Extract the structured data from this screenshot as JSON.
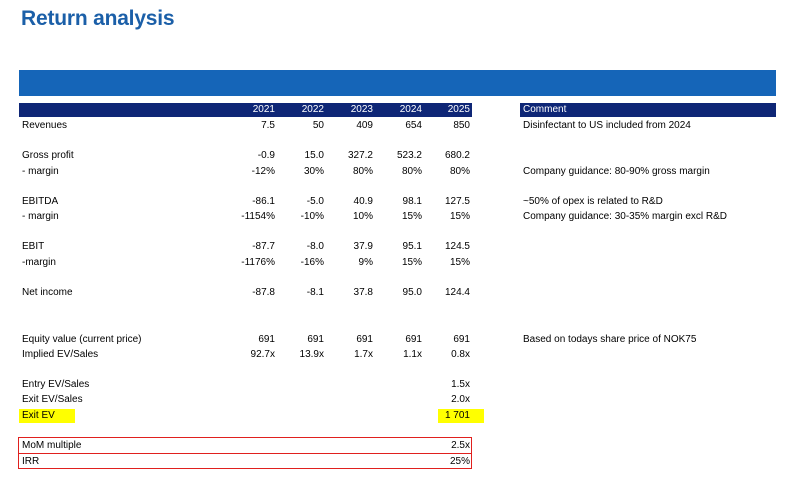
{
  "title": "Return analysis",
  "years": [
    "2021",
    "2022",
    "2023",
    "2024",
    "2025"
  ],
  "comment_header": "Comment",
  "rows": [
    {
      "label": "Revenues",
      "values": [
        "7.5",
        "50",
        "409",
        "654",
        "850"
      ],
      "comment": "Disinfectant to US included from 2024"
    },
    {
      "label": "Gross profit",
      "values": [
        "-0.9",
        "15.0",
        "327.2",
        "523.2",
        "680.2"
      ],
      "comment": ""
    },
    {
      "label": "- margin",
      "values": [
        "-12%",
        "30%",
        "80%",
        "80%",
        "80%"
      ],
      "comment": "Company guidance: 80-90% gross margin"
    },
    {
      "label": "EBITDA",
      "values": [
        "-86.1",
        "-5.0",
        "40.9",
        "98.1",
        "127.5"
      ],
      "comment": "~50% of opex is related to R&D"
    },
    {
      "label": "- margin",
      "values": [
        "-1154%",
        "-10%",
        "10%",
        "15%",
        "15%"
      ],
      "comment": "Company guidance: 30-35% margin excl R&D"
    },
    {
      "label": "EBIT",
      "values": [
        "-87.7",
        "-8.0",
        "37.9",
        "95.1",
        "124.5"
      ],
      "comment": ""
    },
    {
      "label": "-margin",
      "values": [
        "-1176%",
        "-16%",
        "9%",
        "15%",
        "15%"
      ],
      "comment": ""
    },
    {
      "label": "Net income",
      "values": [
        "-87.8",
        "-8.1",
        "37.8",
        "95.0",
        "124.4"
      ],
      "comment": ""
    },
    {
      "label": "Equity value (current price)",
      "values": [
        "691",
        "691",
        "691",
        "691",
        "691"
      ],
      "comment": "Based on todays share price of NOK75"
    },
    {
      "label": "Implied EV/Sales",
      "values": [
        "92.7x",
        "13.9x",
        "1.7x",
        "1.1x",
        "0.8x"
      ],
      "comment": ""
    }
  ],
  "entry": {
    "label": "Entry EV/Sales",
    "value": "1.5x"
  },
  "exit_multiple": {
    "label": "Exit EV/Sales",
    "value": "2.0x"
  },
  "exit_ev": {
    "label": "Exit EV",
    "value": "1 701"
  },
  "mom": {
    "label": "MoM multiple",
    "value": "2.5x"
  },
  "irr": {
    "label": "IRR",
    "value": "25%"
  },
  "colors": {
    "title": "#1b5fa8",
    "banner": "#1565b8",
    "header": "#0e2676",
    "highlight": "#ffff00",
    "box": "#e0201e"
  }
}
